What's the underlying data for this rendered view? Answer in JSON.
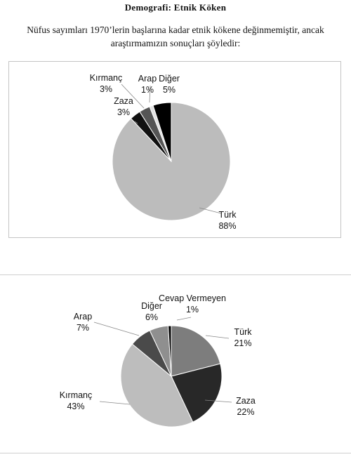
{
  "page": {
    "title": "Demografi: Etnik Köken",
    "intro_line1": "Nüfus sayımları 1970’lerin başlarına kadar etnik kökene değinmemiştir, ancak",
    "intro_line2": "araştırmamızın sonuçları şöyledir:"
  },
  "chart_data": [
    {
      "type": "pie",
      "start": "top",
      "direction": "clockwise",
      "slices": [
        {
          "label": "Türk",
          "value": 88,
          "value_label": "88%",
          "color": "#bcbcbc"
        },
        {
          "label": "Zaza",
          "value": 3,
          "value_label": "3%",
          "color": "#111111"
        },
        {
          "label": "Kırmanç",
          "value": 3,
          "value_label": "3%",
          "color": "#555555"
        },
        {
          "label": "Arap",
          "value": 1,
          "value_label": "1%",
          "color": "#e2e2e2"
        },
        {
          "label": "Diğer",
          "value": 5,
          "value_label": "5%",
          "color": "#000000"
        }
      ]
    },
    {
      "type": "pie",
      "start": "top",
      "direction": "clockwise",
      "slices": [
        {
          "label": "Türk",
          "value": 21,
          "value_label": "21%",
          "color": "#7d7d7d"
        },
        {
          "label": "Zaza",
          "value": 22,
          "value_label": "22%",
          "color": "#282828"
        },
        {
          "label": "Kırmanç",
          "value": 43,
          "value_label": "43%",
          "color": "#bdbdbd"
        },
        {
          "label": "Arap",
          "value": 7,
          "value_label": "7%",
          "color": "#4a4a4a"
        },
        {
          "label": "Diğer",
          "value": 6,
          "value_label": "6%",
          "color": "#8f8f8f"
        },
        {
          "label": "Cevap Vermeyen",
          "value": 1,
          "value_label": "1%",
          "color": "#000000"
        }
      ]
    }
  ]
}
